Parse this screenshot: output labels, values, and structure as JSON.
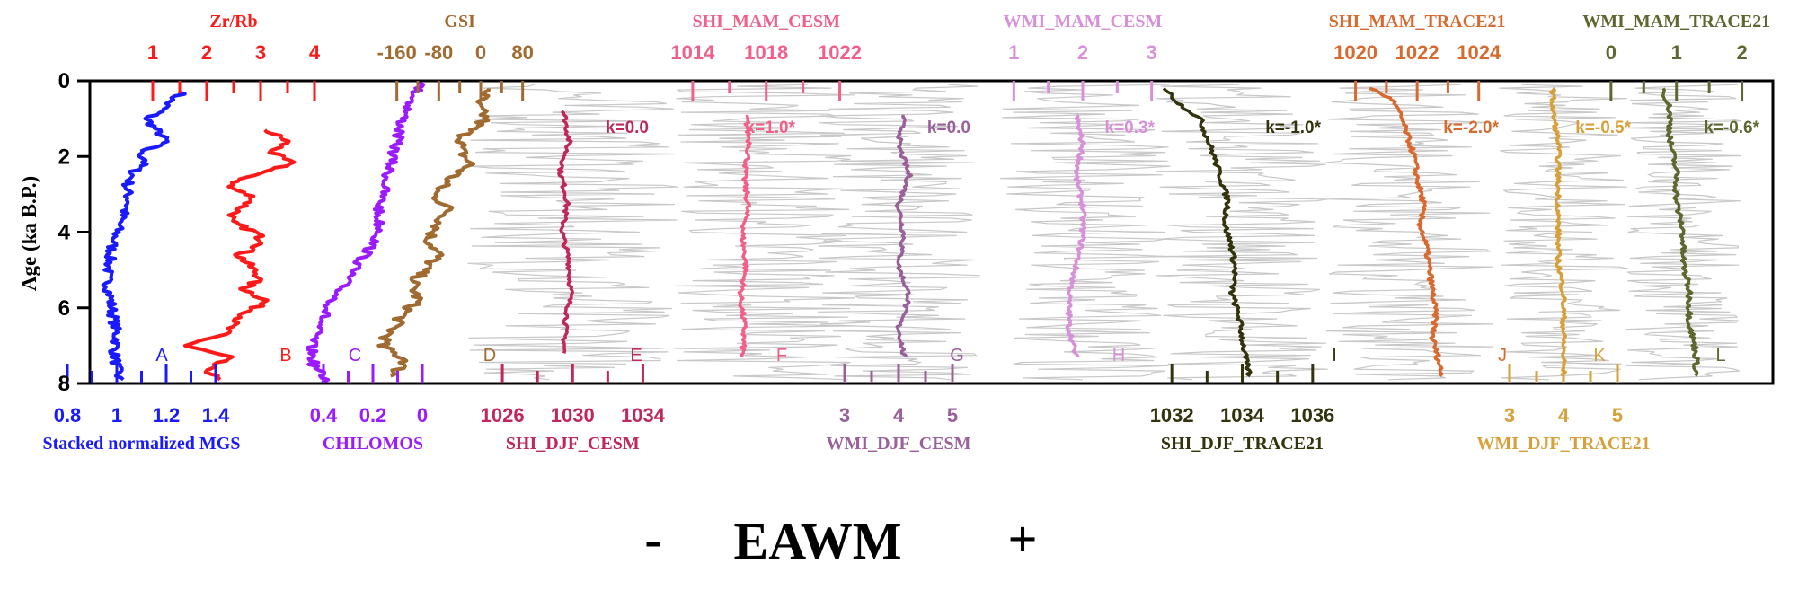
{
  "figure": {
    "ylabel": "Age (ka B.P.)",
    "yticks": [
      "0",
      "2",
      "4",
      "6",
      "8"
    ],
    "bottom_caption": {
      "minus": "-",
      "text": "EAWM",
      "plus": "+"
    }
  },
  "chart_data": {
    "type": "line",
    "y_axis": {
      "label": "Age (ka B.P.)",
      "range": [
        0,
        8
      ],
      "inverted": true,
      "ticks": [
        0,
        2,
        4,
        6,
        8
      ]
    },
    "panels": [
      {
        "id": "A",
        "name": "Stacked normalized MGS",
        "axis_side": "bottom",
        "color": "#1a1aff",
        "range": [
          0.8,
          1.4
        ],
        "reversed": false,
        "tick_labels": [
          "0.8",
          "1",
          "1.2",
          "1.4"
        ],
        "tick_values": [
          0.8,
          1.0,
          1.2,
          1.4
        ],
        "noise": "none",
        "ages": [
          0.3,
          0.5,
          0.8,
          1.0,
          1.3,
          1.6,
          1.9,
          2.1,
          2.4,
          2.8,
          3.2,
          3.6,
          4.0,
          4.4,
          4.8,
          5.2,
          5.6,
          6.0,
          6.4,
          6.8,
          7.2,
          7.6,
          7.9
        ],
        "values": [
          1.27,
          1.22,
          1.18,
          1.12,
          1.16,
          1.2,
          1.09,
          1.12,
          1.07,
          1.04,
          1.05,
          1.02,
          1.0,
          0.98,
          0.97,
          0.96,
          0.97,
          0.98,
          0.99,
          1.0,
          0.99,
          1.0,
          1.01
        ]
      },
      {
        "id": "B",
        "name": "Zr/Rb",
        "axis_side": "top",
        "color": "#ff1a1a",
        "range": [
          1,
          4
        ],
        "reversed": false,
        "tick_labels": [
          "1",
          "2",
          "3",
          "4"
        ],
        "tick_values": [
          1,
          2,
          3,
          4
        ],
        "noise": "none",
        "ages": [
          1.3,
          1.6,
          1.9,
          2.2,
          2.5,
          2.8,
          3.1,
          3.4,
          3.7,
          4.0,
          4.3,
          4.6,
          4.9,
          5.2,
          5.5,
          5.8,
          6.1,
          6.4,
          6.7,
          7.0,
          7.3,
          7.6,
          7.9
        ],
        "values": [
          3.1,
          3.5,
          3.2,
          3.6,
          2.8,
          2.4,
          2.9,
          2.6,
          2.4,
          2.9,
          3.1,
          2.6,
          2.8,
          3.0,
          2.7,
          3.1,
          2.8,
          2.5,
          2.3,
          1.6,
          2.4,
          2.0,
          2.2
        ]
      },
      {
        "id": "C",
        "name": "CHILOMOS",
        "axis_side": "bottom",
        "color": "#9b1aff",
        "range": [
          0,
          0.6
        ],
        "reversed": true,
        "tick_labels": [
          "0.4",
          "0.2",
          "0"
        ],
        "tick_values": [
          0.4,
          0.2,
          0.0
        ],
        "noise": "none",
        "ages": [
          0.0,
          0.5,
          1.0,
          1.5,
          2.0,
          2.5,
          3.0,
          3.5,
          4.0,
          4.5,
          5.0,
          5.5,
          6.0,
          6.5,
          7.0,
          7.5,
          8.0
        ],
        "values": [
          0.0,
          0.04,
          0.08,
          0.1,
          0.12,
          0.14,
          0.16,
          0.18,
          0.17,
          0.22,
          0.28,
          0.33,
          0.38,
          0.42,
          0.45,
          0.44,
          0.38
        ]
      },
      {
        "id": "D",
        "name": "GSI",
        "axis_side": "top",
        "color": "#a06a30",
        "range": [
          -240,
          120
        ],
        "reversed": false,
        "tick_labels": [
          "-160",
          "-80",
          "0",
          "80"
        ],
        "tick_values": [
          -160,
          -80,
          0,
          80
        ],
        "noise": "none",
        "ages": [
          0.2,
          0.6,
          1.0,
          1.4,
          1.8,
          2.2,
          2.6,
          3.0,
          3.4,
          3.8,
          4.2,
          4.6,
          5.0,
          5.4,
          5.8,
          6.2,
          6.6,
          7.0,
          7.4,
          7.8
        ],
        "values": [
          20,
          -10,
          10,
          -30,
          -40,
          -20,
          -60,
          -90,
          -60,
          -80,
          -100,
          -80,
          -110,
          -130,
          -120,
          -150,
          -170,
          -190,
          -140,
          -170
        ]
      },
      {
        "id": "E",
        "name": "SHI_DJF_CESM",
        "axis_side": "bottom",
        "color": "#c0275a",
        "range": [
          1024,
          1035
        ],
        "reversed": false,
        "tick_labels": [
          "1026",
          "1030",
          "1034"
        ],
        "tick_values": [
          1026,
          1030,
          1034
        ],
        "noise": "gray",
        "noise_range": [
          1024,
          1036
        ],
        "k_label": "k=0.0",
        "ages": [
          0.8,
          1.6,
          2.4,
          3.2,
          4.0,
          4.8,
          5.6,
          6.4,
          7.2
        ],
        "values": [
          1029.5,
          1029.8,
          1029.3,
          1029.7,
          1029.4,
          1029.8,
          1029.9,
          1029.6,
          1029.5
        ]
      },
      {
        "id": "F",
        "name": "SHI_MAM_CESM",
        "axis_side": "top",
        "color": "#f0608a",
        "range": [
          1012,
          1023
        ],
        "reversed": false,
        "tick_labels": [
          "1014",
          "1018",
          "1022"
        ],
        "tick_values": [
          1014,
          1018,
          1022
        ],
        "noise": "gray",
        "noise_range": [
          1013,
          1023
        ],
        "k_label": "k=1.0*",
        "ages": [
          0.9,
          1.7,
          2.5,
          3.3,
          4.1,
          4.9,
          5.7,
          6.5,
          7.3
        ],
        "values": [
          1016.9,
          1017.1,
          1016.8,
          1017.0,
          1016.7,
          1016.9,
          1016.6,
          1016.8,
          1016.7
        ]
      },
      {
        "id": "G",
        "name": "WMI_DJF_CESM",
        "axis_side": "bottom",
        "color": "#9a609a",
        "range": [
          2,
          5.5
        ],
        "reversed": false,
        "tick_labels": [
          "3",
          "4",
          "5"
        ],
        "tick_values": [
          3,
          4,
          5
        ],
        "noise": "gray",
        "noise_range": [
          2.5,
          5.5
        ],
        "k_label": "k=0.0",
        "ages": [
          0.9,
          1.7,
          2.5,
          3.3,
          4.1,
          4.9,
          5.7,
          6.5,
          7.3
        ],
        "values": [
          4.1,
          4.0,
          4.2,
          4.0,
          4.1,
          4.0,
          4.2,
          4.0,
          4.1
        ]
      },
      {
        "id": "H",
        "name": "WMI_MAM_CESM",
        "axis_side": "top",
        "color": "#d890d8",
        "range": [
          0.5,
          3.5
        ],
        "reversed": false,
        "tick_labels": [
          "1",
          "2",
          "3"
        ],
        "tick_values": [
          1,
          2,
          3
        ],
        "noise": "gray",
        "noise_range": [
          0.8,
          3.3
        ],
        "k_label": "k=0.3*",
        "ages": [
          0.9,
          1.7,
          2.5,
          3.3,
          4.1,
          4.9,
          5.7,
          6.5,
          7.3
        ],
        "values": [
          1.9,
          2.0,
          1.9,
          2.0,
          2.0,
          1.9,
          1.8,
          1.8,
          1.9
        ]
      },
      {
        "id": "I",
        "name": "SHI_DJF_TRACE21",
        "axis_side": "bottom",
        "color": "#33330e",
        "range": [
          1031,
          1037
        ],
        "reversed": false,
        "tick_labels": [
          "1032",
          "1034",
          "1036"
        ],
        "tick_values": [
          1032,
          1034,
          1036
        ],
        "noise": "gray",
        "noise_range": [
          1031.5,
          1036.5
        ],
        "k_label": "k=-1.0*",
        "ages": [
          0.2,
          0.6,
          1.0,
          1.5,
          2.0,
          2.6,
          3.2,
          3.8,
          4.4,
          5.0,
          5.6,
          6.2,
          6.8,
          7.4,
          7.8
        ],
        "values": [
          1031.8,
          1032.2,
          1032.8,
          1033.0,
          1033.2,
          1033.4,
          1033.6,
          1033.5,
          1033.7,
          1033.8,
          1033.7,
          1033.9,
          1034.0,
          1034.1,
          1034.2
        ]
      },
      {
        "id": "J",
        "name": "SHI_MAM_TRACE21",
        "axis_side": "top",
        "color": "#d86a30",
        "range": [
          1018,
          1025
        ],
        "reversed": false,
        "tick_labels": [
          "1020",
          "1022",
          "1024"
        ],
        "tick_values": [
          1020,
          1022,
          1024
        ],
        "noise": "gray",
        "noise_range": [
          1019,
          1024.5
        ],
        "k_label": "k=-2.0*",
        "ages": [
          0.2,
          0.5,
          1.0,
          1.5,
          2.0,
          2.6,
          3.2,
          3.8,
          4.4,
          5.0,
          5.6,
          6.2,
          6.8,
          7.4,
          7.8
        ],
        "values": [
          1020.5,
          1021.2,
          1021.5,
          1021.7,
          1021.9,
          1022.0,
          1022.2,
          1022.1,
          1022.3,
          1022.4,
          1022.5,
          1022.6,
          1022.5,
          1022.7,
          1022.8
        ]
      },
      {
        "id": "K",
        "name": "WMI_DJF_TRACE21",
        "axis_side": "bottom",
        "color": "#d8a03a",
        "range": [
          2,
          5.5
        ],
        "reversed": false,
        "tick_labels": [
          "3",
          "4",
          "5"
        ],
        "tick_values": [
          3,
          4,
          5
        ],
        "noise": "gray",
        "noise_range": [
          2.8,
          5.2
        ],
        "k_label": "k=-0.5*",
        "ages": [
          0.2,
          0.8,
          1.6,
          2.4,
          3.2,
          4.0,
          4.8,
          5.6,
          6.4,
          7.2,
          7.8
        ],
        "values": [
          3.8,
          3.8,
          3.9,
          3.9,
          3.9,
          3.9,
          3.9,
          4.0,
          4.0,
          4.0,
          4.0
        ]
      },
      {
        "id": "L",
        "name": "WMI_MAM_TRACE21",
        "axis_side": "top",
        "color": "#5f6630",
        "range": [
          -1,
          2.5
        ],
        "reversed": false,
        "tick_labels": [
          "0",
          "1",
          "2"
        ],
        "tick_values": [
          0,
          1,
          2
        ],
        "noise": "gray",
        "noise_range": [
          0.2,
          2.0
        ],
        "k_label": "k=-0.6*",
        "ages": [
          0.2,
          0.8,
          1.6,
          2.4,
          3.2,
          4.0,
          4.8,
          5.6,
          6.4,
          7.2,
          7.8
        ],
        "values": [
          0.8,
          0.9,
          0.9,
          1.0,
          1.0,
          1.1,
          1.1,
          1.2,
          1.2,
          1.3,
          1.3
        ]
      }
    ]
  }
}
